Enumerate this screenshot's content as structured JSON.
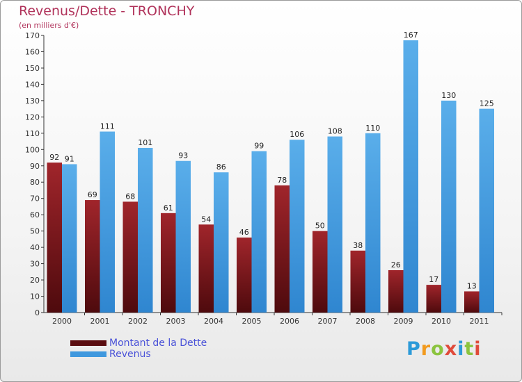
{
  "title": "Revenus/Dette - TRONCHY",
  "subtitle": "(en milliers d'€)",
  "logo": "Proxiti",
  "chart_data": {
    "type": "bar",
    "title": "Revenus/Dette - TRONCHY",
    "subtitle": "(en milliers d'€)",
    "xlabel": "",
    "ylabel": "",
    "ylim": [
      0,
      170
    ],
    "ytick_step": 10,
    "grid": false,
    "legend_position": "bottom-left",
    "categories": [
      "2000",
      "2001",
      "2002",
      "2003",
      "2004",
      "2005",
      "2006",
      "2007",
      "2008",
      "2009",
      "2010",
      "2011"
    ],
    "series": [
      {
        "name": "Montant de la Dette",
        "color": "#7a1519",
        "values": [
          92,
          69,
          68,
          61,
          54,
          46,
          78,
          50,
          38,
          26,
          17,
          13
        ]
      },
      {
        "name": "Revenus",
        "color": "#4a9fe0",
        "values": [
          91,
          111,
          101,
          93,
          86,
          99,
          106,
          108,
          110,
          167,
          130,
          125
        ]
      }
    ]
  }
}
